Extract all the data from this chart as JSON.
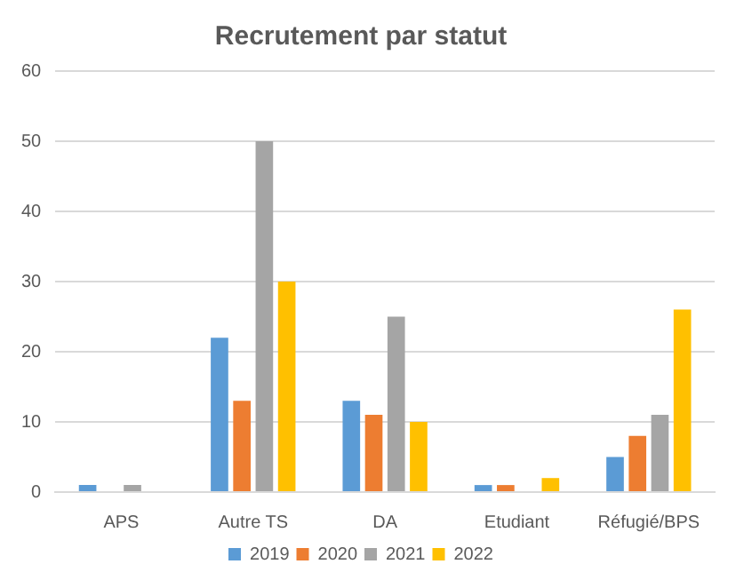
{
  "chart_data": {
    "type": "bar",
    "title": "Recrutement par statut",
    "categories": [
      "APS",
      "Autre TS",
      "DA",
      "Etudiant",
      "Réfugié/BPS"
    ],
    "series": [
      {
        "name": "2019",
        "color": "#5b9bd5",
        "values": [
          1,
          22,
          13,
          1,
          5
        ]
      },
      {
        "name": "2020",
        "color": "#ed7d31",
        "values": [
          0,
          13,
          11,
          1,
          8
        ]
      },
      {
        "name": "2021",
        "color": "#a5a5a5",
        "values": [
          1,
          50,
          25,
          0,
          11
        ]
      },
      {
        "name": "2022",
        "color": "#ffc000",
        "values": [
          0,
          30,
          10,
          2,
          26
        ]
      }
    ],
    "ylim": [
      0,
      60
    ],
    "yticks": [
      0,
      10,
      20,
      30,
      40,
      50,
      60
    ],
    "grid": "y",
    "legend": "bottom"
  }
}
